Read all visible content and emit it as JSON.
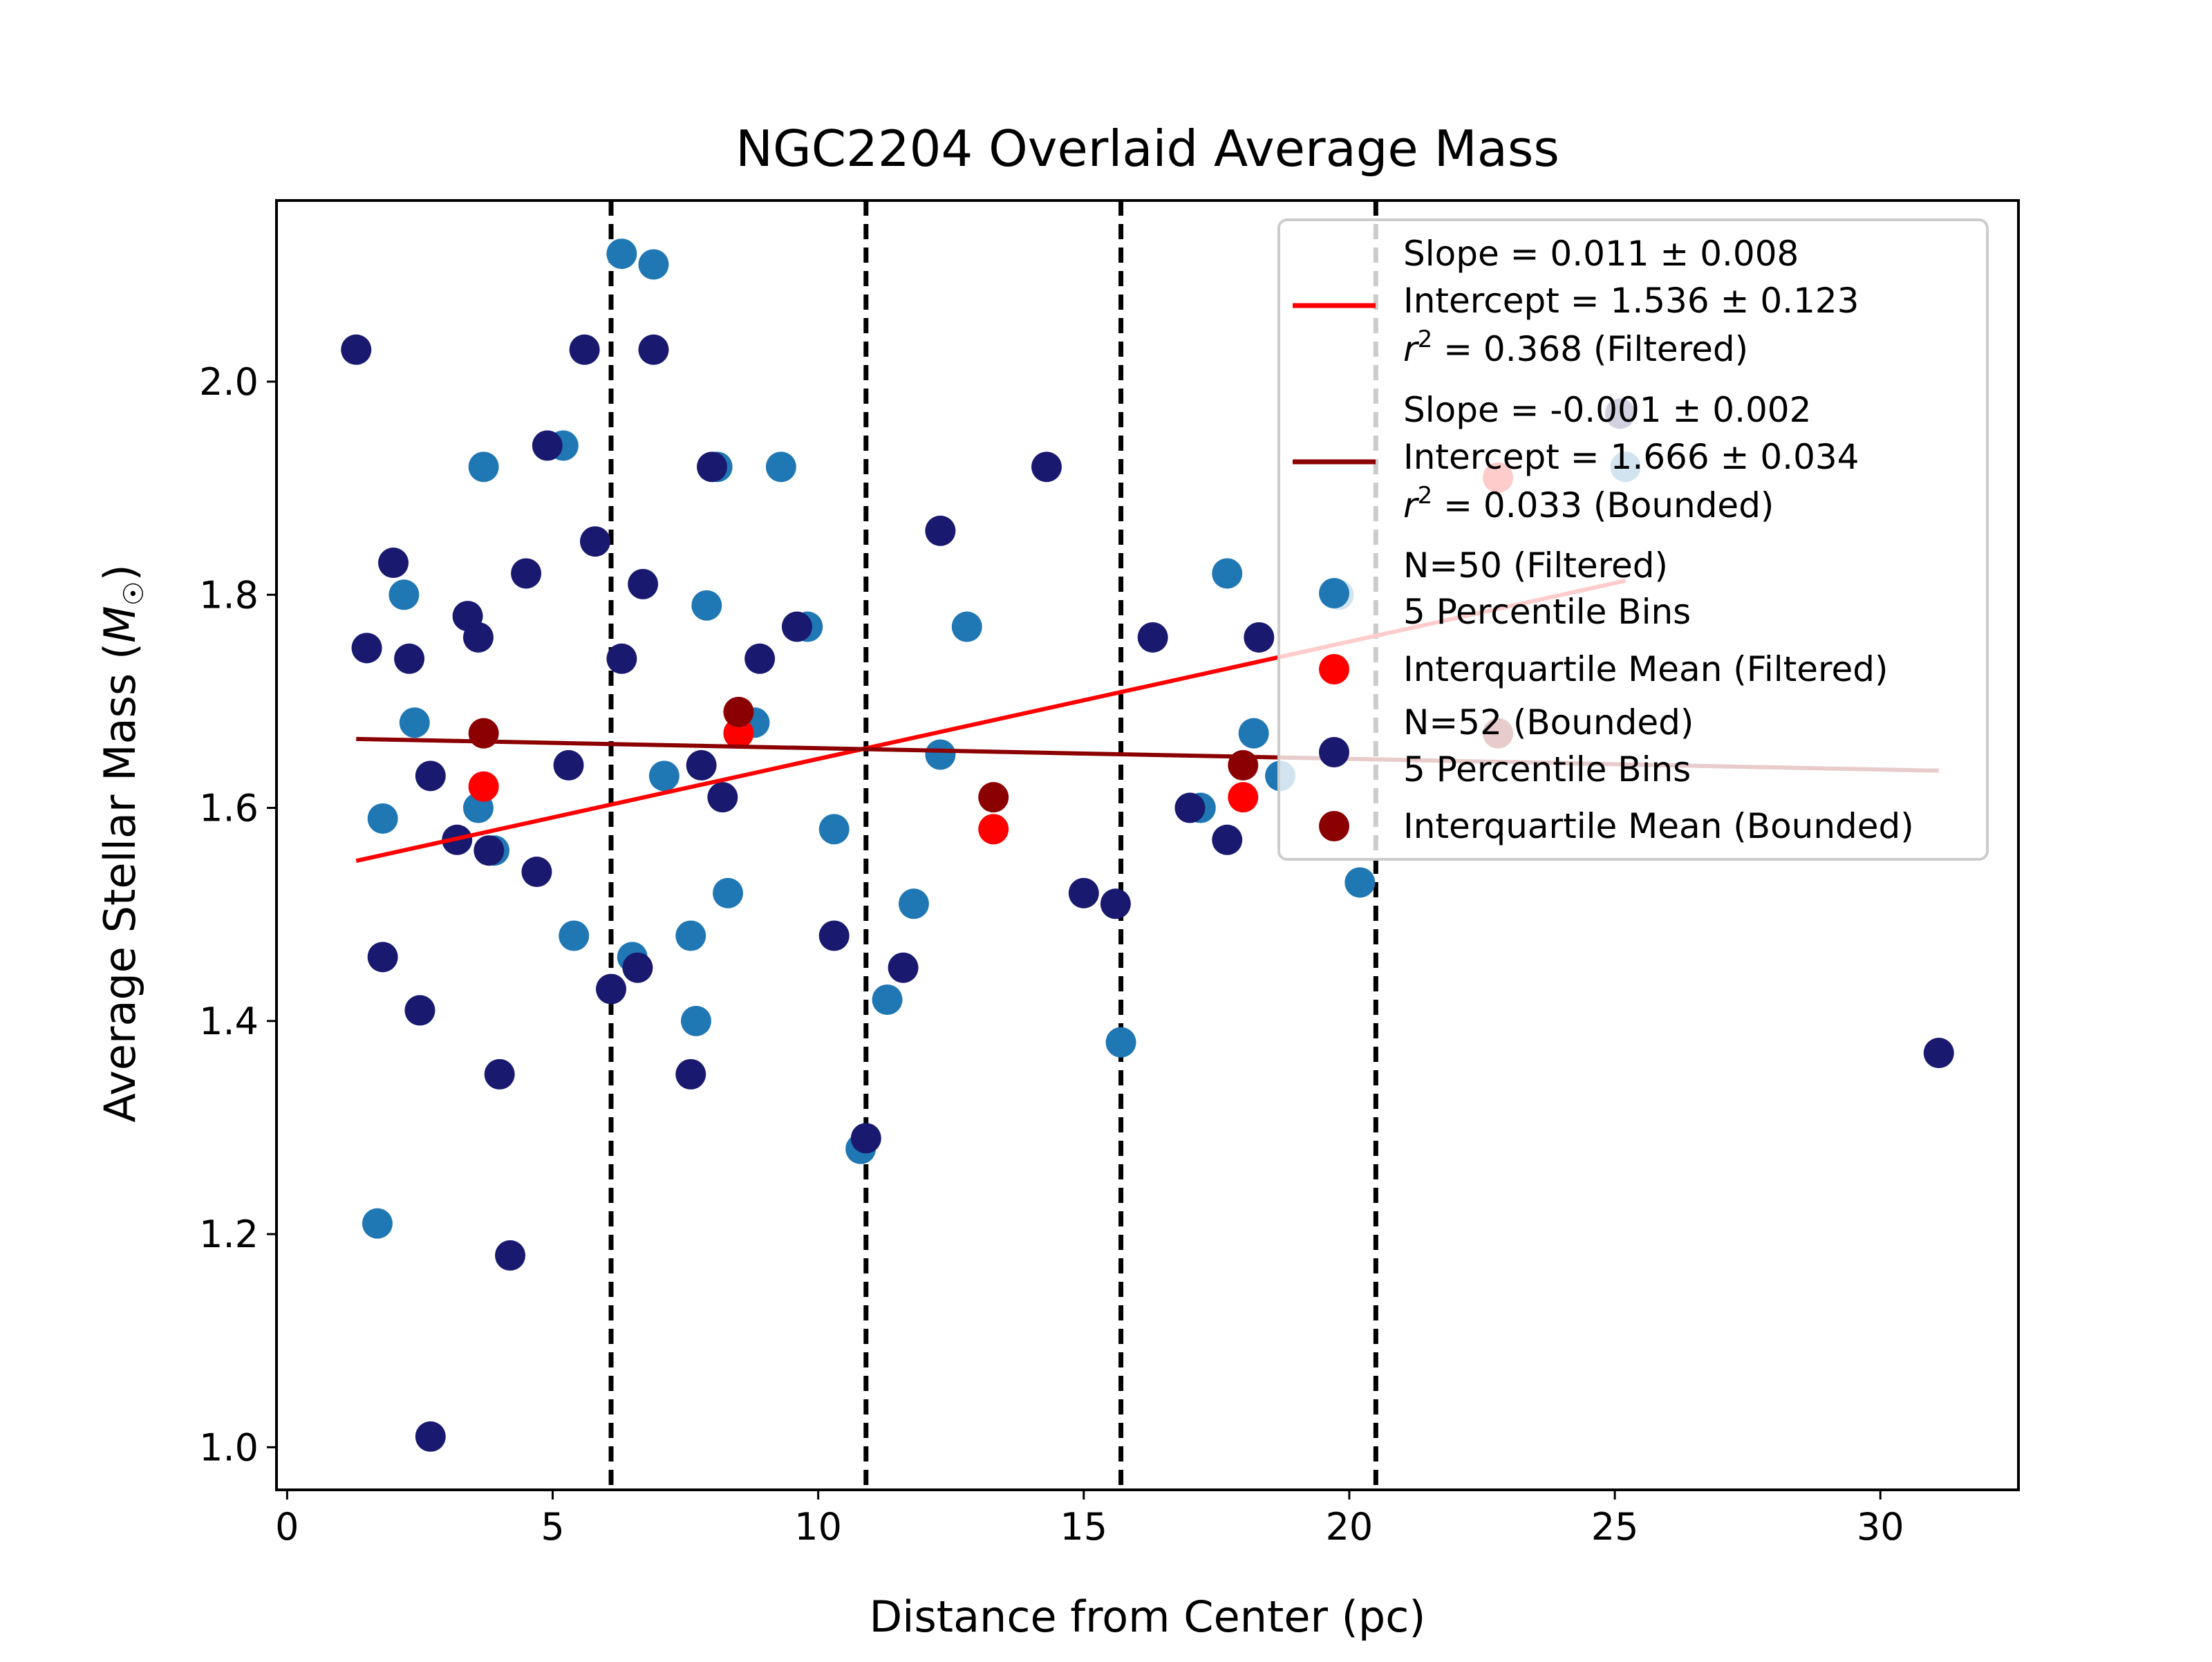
{
  "chart_data": {
    "type": "scatter",
    "title": "NGC2204 Overlaid Average Mass",
    "xlabel": "Distance from Center (pc)",
    "ylabel_main": "Average Stellar Mass (",
    "ylabel_symbol": "M",
    "ylabel_sub": "☉",
    "ylabel_end": ")",
    "xlim": [
      -0.2,
      32.6
    ],
    "ylim": [
      0.96,
      2.17
    ],
    "xticks": [
      0,
      5,
      10,
      15,
      20,
      25,
      30
    ],
    "xtick_labels": [
      "0",
      "5",
      "10",
      "15",
      "20",
      "25",
      "30"
    ],
    "yticks": [
      1.0,
      1.2,
      1.4,
      1.6,
      1.8,
      2.0
    ],
    "ytick_labels": [
      "1.0",
      "1.2",
      "1.4",
      "1.6",
      "1.8",
      "2.0"
    ],
    "grid": false,
    "legend_position": "top-right",
    "vlines": [
      6.1,
      10.9,
      15.7,
      20.5
    ],
    "colors": {
      "filtered": "#1f77b4",
      "bounded": "#191970",
      "fit_filtered": "#ff0000",
      "fit_bounded": "#8b0000",
      "iqm_filtered": "#ff0000",
      "iqm_bounded": "#8b0000",
      "vline": "#000000"
    },
    "series": [
      {
        "name_line1": "N=50 (Filtered)",
        "name_line2": "5 Percentile Bins",
        "key": "filtered",
        "type": "scatter",
        "points": [
          [
            1.5,
            1.75
          ],
          [
            1.7,
            1.21
          ],
          [
            1.8,
            1.59
          ],
          [
            2.2,
            1.8
          ],
          [
            2.4,
            1.68
          ],
          [
            2.5,
            1.41
          ],
          [
            3.6,
            1.6
          ],
          [
            3.7,
            1.92
          ],
          [
            3.9,
            1.56
          ],
          [
            5.2,
            1.94
          ],
          [
            5.4,
            1.48
          ],
          [
            6.3,
            2.12
          ],
          [
            6.5,
            1.46
          ],
          [
            6.9,
            2.11
          ],
          [
            7.1,
            1.63
          ],
          [
            7.6,
            1.48
          ],
          [
            7.7,
            1.4
          ],
          [
            7.9,
            1.79
          ],
          [
            8.1,
            1.92
          ],
          [
            8.3,
            1.52
          ],
          [
            8.8,
            1.68
          ],
          [
            9.3,
            1.92
          ],
          [
            9.8,
            1.77
          ],
          [
            10.3,
            1.58
          ],
          [
            10.8,
            1.28
          ],
          [
            11.3,
            1.42
          ],
          [
            11.8,
            1.51
          ],
          [
            12.3,
            1.65
          ],
          [
            12.8,
            1.77
          ],
          [
            15.7,
            1.38
          ],
          [
            17.2,
            1.6
          ],
          [
            17.7,
            1.82
          ],
          [
            18.2,
            1.67
          ],
          [
            18.7,
            1.63
          ],
          [
            19.8,
            1.8
          ],
          [
            20.2,
            1.53
          ],
          [
            25.2,
            1.92
          ]
        ]
      },
      {
        "name_line1": "N=52 (Bounded)",
        "name_line2": "5 Percentile Bins",
        "key": "bounded",
        "type": "scatter",
        "points": [
          [
            1.3,
            2.03
          ],
          [
            1.5,
            1.75
          ],
          [
            1.8,
            1.46
          ],
          [
            2.0,
            1.83
          ],
          [
            2.3,
            1.74
          ],
          [
            2.5,
            1.41
          ],
          [
            2.7,
            1.63
          ],
          [
            2.7,
            1.01
          ],
          [
            3.2,
            1.57
          ],
          [
            3.4,
            1.78
          ],
          [
            3.6,
            1.76
          ],
          [
            3.8,
            1.56
          ],
          [
            4.0,
            1.35
          ],
          [
            4.2,
            1.18
          ],
          [
            4.5,
            1.82
          ],
          [
            4.7,
            1.54
          ],
          [
            4.9,
            1.94
          ],
          [
            5.3,
            1.64
          ],
          [
            5.6,
            2.03
          ],
          [
            5.8,
            1.85
          ],
          [
            6.1,
            1.43
          ],
          [
            6.3,
            1.74
          ],
          [
            6.6,
            1.45
          ],
          [
            6.7,
            1.81
          ],
          [
            6.9,
            2.03
          ],
          [
            7.6,
            1.35
          ],
          [
            7.8,
            1.64
          ],
          [
            8.0,
            1.92
          ],
          [
            8.2,
            1.61
          ],
          [
            8.9,
            1.74
          ],
          [
            9.6,
            1.77
          ],
          [
            10.3,
            1.48
          ],
          [
            10.9,
            1.29
          ],
          [
            11.6,
            1.45
          ],
          [
            12.3,
            1.86
          ],
          [
            14.3,
            1.92
          ],
          [
            15.0,
            1.52
          ],
          [
            15.6,
            1.51
          ],
          [
            16.3,
            1.76
          ],
          [
            17.0,
            1.6
          ],
          [
            17.7,
            1.57
          ],
          [
            18.3,
            1.76
          ],
          [
            25.1,
            1.97
          ],
          [
            31.1,
            1.37
          ]
        ]
      },
      {
        "name": "Interquartile Mean (Filtered)",
        "key": "iqm_filtered",
        "type": "scatter",
        "points": [
          [
            3.7,
            1.62
          ],
          [
            8.5,
            1.67
          ],
          [
            13.3,
            1.58
          ],
          [
            18.0,
            1.61
          ],
          [
            22.8,
            1.91
          ]
        ]
      },
      {
        "name": "Interquartile Mean (Bounded)",
        "key": "iqm_bounded",
        "type": "scatter",
        "points": [
          [
            3.7,
            1.67
          ],
          [
            8.5,
            1.69
          ],
          [
            13.3,
            1.61
          ],
          [
            18.0,
            1.64
          ],
          [
            22.8,
            1.67
          ]
        ]
      }
    ],
    "fits": [
      {
        "key": "fit_filtered",
        "x_range": [
          1.3,
          25.2
        ],
        "slope": 0.011,
        "intercept": 1.536,
        "label_line1": "Slope = 0.011 ± 0.008",
        "label_line2": "Intercept = 1.536 ± 0.123",
        "label_line3_prefix": "r",
        "label_line3_sup": "2",
        "label_line3_suffix": " = 0.368 (Filtered)"
      },
      {
        "key": "fit_bounded",
        "x_range": [
          1.3,
          31.1
        ],
        "slope": -0.001,
        "intercept": 1.666,
        "label_line1": "Slope = -0.001 ± 0.002",
        "label_line2": "Intercept = 1.666 ± 0.034",
        "label_line3_prefix": "r",
        "label_line3_sup": "2",
        "label_line3_suffix": " = 0.033 (Bounded)"
      }
    ]
  }
}
